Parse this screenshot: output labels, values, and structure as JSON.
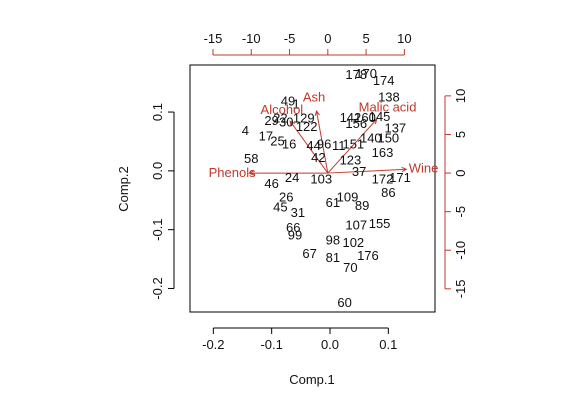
{
  "chart_data": {
    "type": "biplot",
    "xlabel": "Comp.1",
    "ylabel": "Comp.2",
    "xlim": [
      -0.24,
      0.18
    ],
    "ylim": [
      -0.24,
      0.18
    ],
    "x_ticks": [
      -0.2,
      -0.1,
      0.0,
      0.1
    ],
    "x_tick_labels": [
      "-0.2",
      "-0.1",
      "0.0",
      "0.1"
    ],
    "y_ticks": [
      -0.2,
      -0.1,
      0.0,
      0.1
    ],
    "y_tick_labels": [
      "-0.2",
      "-0.1",
      "0.0",
      "0.1"
    ],
    "loading_xlim": [
      -18,
      14
    ],
    "loading_ylim": [
      -18,
      14
    ],
    "top_ticks": [
      -15,
      -10,
      -5,
      0,
      5,
      10
    ],
    "top_tick_labels": [
      "-15",
      "-10",
      "-5",
      "0",
      "5",
      "10"
    ],
    "right_ticks": [
      -15,
      -10,
      -5,
      0,
      5,
      10
    ],
    "right_tick_labels": [
      "-15",
      "-10",
      "-5",
      "0",
      "5",
      "10"
    ],
    "observations": [
      {
        "label": "178",
        "x": 0.045,
        "y": 0.163
      },
      {
        "label": "170",
        "x": 0.062,
        "y": 0.165
      },
      {
        "label": "174",
        "x": 0.092,
        "y": 0.153
      },
      {
        "label": "138",
        "x": 0.101,
        "y": 0.125
      },
      {
        "label": "49",
        "x": -0.072,
        "y": 0.118
      },
      {
        "label": "1",
        "x": -0.058,
        "y": 0.113
      },
      {
        "label": "129",
        "x": -0.045,
        "y": 0.089
      },
      {
        "label": "29",
        "x": -0.1,
        "y": 0.085
      },
      {
        "label": "22",
        "x": -0.085,
        "y": 0.089
      },
      {
        "label": "30",
        "x": -0.075,
        "y": 0.082
      },
      {
        "label": "122",
        "x": -0.04,
        "y": 0.075
      },
      {
        "label": "142",
        "x": 0.035,
        "y": 0.09
      },
      {
        "label": "160",
        "x": 0.06,
        "y": 0.09
      },
      {
        "label": "145",
        "x": 0.085,
        "y": 0.092
      },
      {
        "label": "156",
        "x": 0.045,
        "y": 0.08
      },
      {
        "label": "137",
        "x": 0.112,
        "y": 0.072
      },
      {
        "label": "4",
        "x": -0.145,
        "y": 0.068
      },
      {
        "label": "17",
        "x": -0.11,
        "y": 0.058
      },
      {
        "label": "25",
        "x": -0.09,
        "y": 0.05
      },
      {
        "label": "16",
        "x": -0.07,
        "y": 0.045
      },
      {
        "label": "44",
        "x": -0.028,
        "y": 0.042
      },
      {
        "label": "96",
        "x": -0.01,
        "y": 0.045
      },
      {
        "label": "11",
        "x": 0.015,
        "y": 0.042
      },
      {
        "label": "151",
        "x": 0.04,
        "y": 0.045
      },
      {
        "label": "140",
        "x": 0.07,
        "y": 0.055
      },
      {
        "label": "150",
        "x": 0.1,
        "y": 0.055
      },
      {
        "label": "58",
        "x": -0.135,
        "y": 0.02
      },
      {
        "label": "42",
        "x": -0.02,
        "y": 0.022
      },
      {
        "label": "123",
        "x": 0.035,
        "y": 0.018
      },
      {
        "label": "163",
        "x": 0.09,
        "y": 0.03
      },
      {
        "label": "46",
        "x": -0.1,
        "y": -0.022
      },
      {
        "label": "24",
        "x": -0.065,
        "y": -0.012
      },
      {
        "label": "103",
        "x": -0.015,
        "y": -0.015
      },
      {
        "label": "37",
        "x": 0.05,
        "y": -0.002
      },
      {
        "label": "172",
        "x": 0.09,
        "y": -0.015
      },
      {
        "label": "171",
        "x": 0.12,
        "y": -0.012
      },
      {
        "label": "86",
        "x": 0.1,
        "y": -0.038
      },
      {
        "label": "26",
        "x": -0.075,
        "y": -0.045
      },
      {
        "label": "45",
        "x": -0.085,
        "y": -0.062
      },
      {
        "label": "31",
        "x": -0.055,
        "y": -0.072
      },
      {
        "label": "61",
        "x": 0.005,
        "y": -0.055
      },
      {
        "label": "109",
        "x": 0.03,
        "y": -0.045
      },
      {
        "label": "89",
        "x": 0.055,
        "y": -0.06
      },
      {
        "label": "66",
        "x": -0.063,
        "y": -0.097
      },
      {
        "label": "99",
        "x": -0.06,
        "y": -0.11
      },
      {
        "label": "107",
        "x": 0.045,
        "y": -0.093
      },
      {
        "label": "155",
        "x": 0.085,
        "y": -0.09
      },
      {
        "label": "98",
        "x": 0.005,
        "y": -0.118
      },
      {
        "label": "102",
        "x": 0.04,
        "y": -0.123
      },
      {
        "label": "67",
        "x": -0.035,
        "y": -0.141
      },
      {
        "label": "81",
        "x": 0.005,
        "y": -0.148
      },
      {
        "label": "176",
        "x": 0.065,
        "y": -0.145
      },
      {
        "label": "70",
        "x": 0.035,
        "y": -0.165
      },
      {
        "label": "60",
        "x": 0.025,
        "y": -0.225
      }
    ],
    "variables": [
      {
        "label": "Ash",
        "x": -1.8,
        "y": 9.8
      },
      {
        "label": "Alcohol",
        "x": -6.0,
        "y": 8.2
      },
      {
        "label": "Malic acid",
        "x": 7.8,
        "y": 8.5
      },
      {
        "label": "Phenols",
        "x": -12.5,
        "y": 0.0
      },
      {
        "label": "Wine",
        "x": 12.5,
        "y": 0.6
      }
    ],
    "variable_color": "#c0392b",
    "observation_color": "#111111"
  }
}
